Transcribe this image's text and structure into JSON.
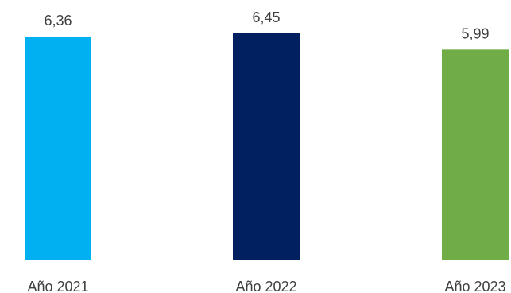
{
  "chart_data": {
    "type": "bar",
    "categories": [
      "Año 2021",
      "Año 2022",
      "Año 2023"
    ],
    "values": [
      6.36,
      6.45,
      5.99
    ],
    "value_labels": [
      "6,36",
      "6,45",
      "5,99"
    ],
    "colors": [
      "#00B0F0",
      "#002060",
      "#70AD47"
    ],
    "ylim": [
      0,
      6.8
    ],
    "grid": false,
    "title": "",
    "xlabel": "",
    "ylabel": ""
  },
  "style": {
    "label_color": "#404040",
    "axis_color": "#D9D9D9"
  }
}
